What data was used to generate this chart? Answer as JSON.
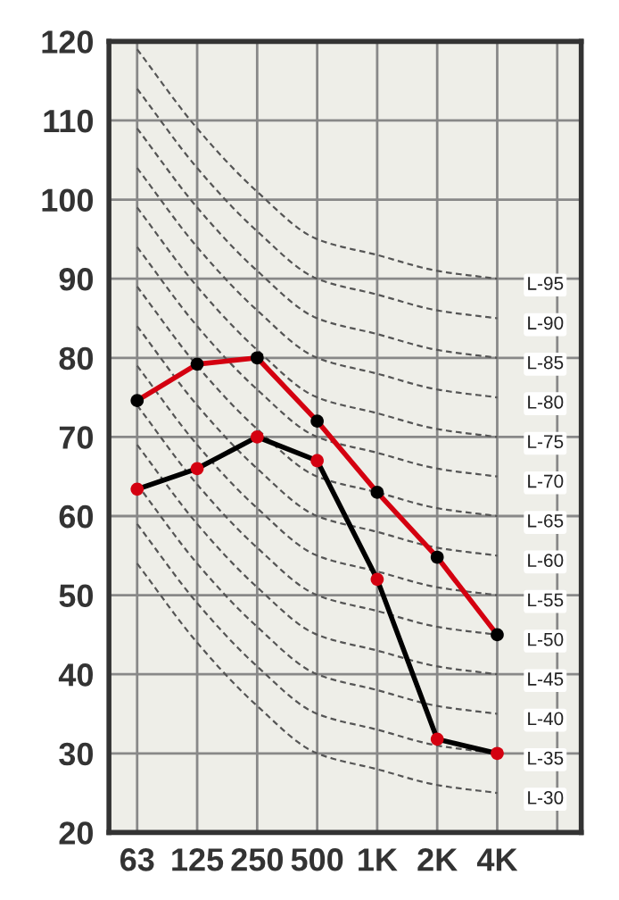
{
  "chart_data": {
    "type": "line",
    "categories": [
      "63",
      "125",
      "250",
      "500",
      "1K",
      "2K",
      "4K",
      null
    ],
    "ylim": [
      20,
      120
    ],
    "yticks": [
      20,
      30,
      40,
      50,
      60,
      70,
      80,
      90,
      100,
      110,
      120
    ],
    "grid": true,
    "legend": false,
    "series": [
      {
        "name": "L-30",
        "color": "#555555",
        "line_style": "dashed",
        "marker": "none",
        "values": [
          54,
          44,
          36,
          30,
          28,
          26,
          25,
          null
        ]
      },
      {
        "name": "L-35",
        "color": "#555555",
        "line_style": "dashed",
        "marker": "none",
        "values": [
          59,
          49,
          41,
          35,
          33,
          31,
          30,
          null
        ]
      },
      {
        "name": "L-40",
        "color": "#555555",
        "line_style": "dashed",
        "marker": "none",
        "values": [
          64,
          54,
          46,
          40,
          38,
          36,
          35,
          null
        ]
      },
      {
        "name": "L-45",
        "color": "#555555",
        "line_style": "dashed",
        "marker": "none",
        "values": [
          69,
          59,
          51,
          45,
          43,
          41,
          40,
          null
        ]
      },
      {
        "name": "L-50",
        "color": "#555555",
        "line_style": "dashed",
        "marker": "none",
        "values": [
          74,
          64,
          56,
          50,
          48,
          46,
          45,
          null
        ]
      },
      {
        "name": "L-55",
        "color": "#555555",
        "line_style": "dashed",
        "marker": "none",
        "values": [
          79,
          69,
          61,
          55,
          53,
          51,
          50,
          null
        ]
      },
      {
        "name": "L-60",
        "color": "#555555",
        "line_style": "dashed",
        "marker": "none",
        "values": [
          84,
          74,
          66,
          60,
          58,
          56,
          55,
          null
        ]
      },
      {
        "name": "L-65",
        "color": "#555555",
        "line_style": "dashed",
        "marker": "none",
        "values": [
          89,
          79,
          71,
          65,
          63,
          61,
          60,
          null
        ]
      },
      {
        "name": "L-70",
        "color": "#555555",
        "line_style": "dashed",
        "marker": "none",
        "values": [
          94,
          84,
          76,
          70,
          68,
          66,
          65,
          null
        ]
      },
      {
        "name": "L-75",
        "color": "#555555",
        "line_style": "dashed",
        "marker": "none",
        "values": [
          99,
          89,
          81,
          75,
          73,
          71,
          70,
          null
        ]
      },
      {
        "name": "L-80",
        "color": "#555555",
        "line_style": "dashed",
        "marker": "none",
        "values": [
          104,
          94,
          86,
          80,
          78,
          76,
          75,
          null
        ]
      },
      {
        "name": "L-85",
        "color": "#555555",
        "line_style": "dashed",
        "marker": "none",
        "values": [
          109,
          99,
          91,
          85,
          83,
          81,
          80,
          null
        ]
      },
      {
        "name": "L-90",
        "color": "#555555",
        "line_style": "dashed",
        "marker": "none",
        "values": [
          114,
          104,
          96,
          90,
          88,
          86,
          85,
          null
        ]
      },
      {
        "name": "L-95",
        "color": "#555555",
        "line_style": "dashed",
        "marker": "none",
        "values": [
          119,
          109,
          101,
          95,
          93,
          91,
          90,
          null
        ]
      },
      {
        "color": "#d40010",
        "line_style": "solid",
        "marker": "circle",
        "colors": [
          "#000000",
          "#000000",
          "#000000",
          "#000000",
          "#000000",
          "#000000",
          "#000000",
          null
        ],
        "values": [
          74.6,
          79.2,
          80,
          72,
          63,
          54.8,
          45,
          null
        ]
      },
      {
        "color": "#000000",
        "line_style": "solid",
        "marker": "circle",
        "colors": [
          "#d40010",
          "#d40010",
          "#d40010",
          "#d40010",
          "#d40010",
          "#d40010",
          "#d40010",
          null
        ],
        "values": [
          63.4,
          66,
          70,
          67,
          52,
          31.8,
          30,
          null
        ]
      }
    ]
  }
}
